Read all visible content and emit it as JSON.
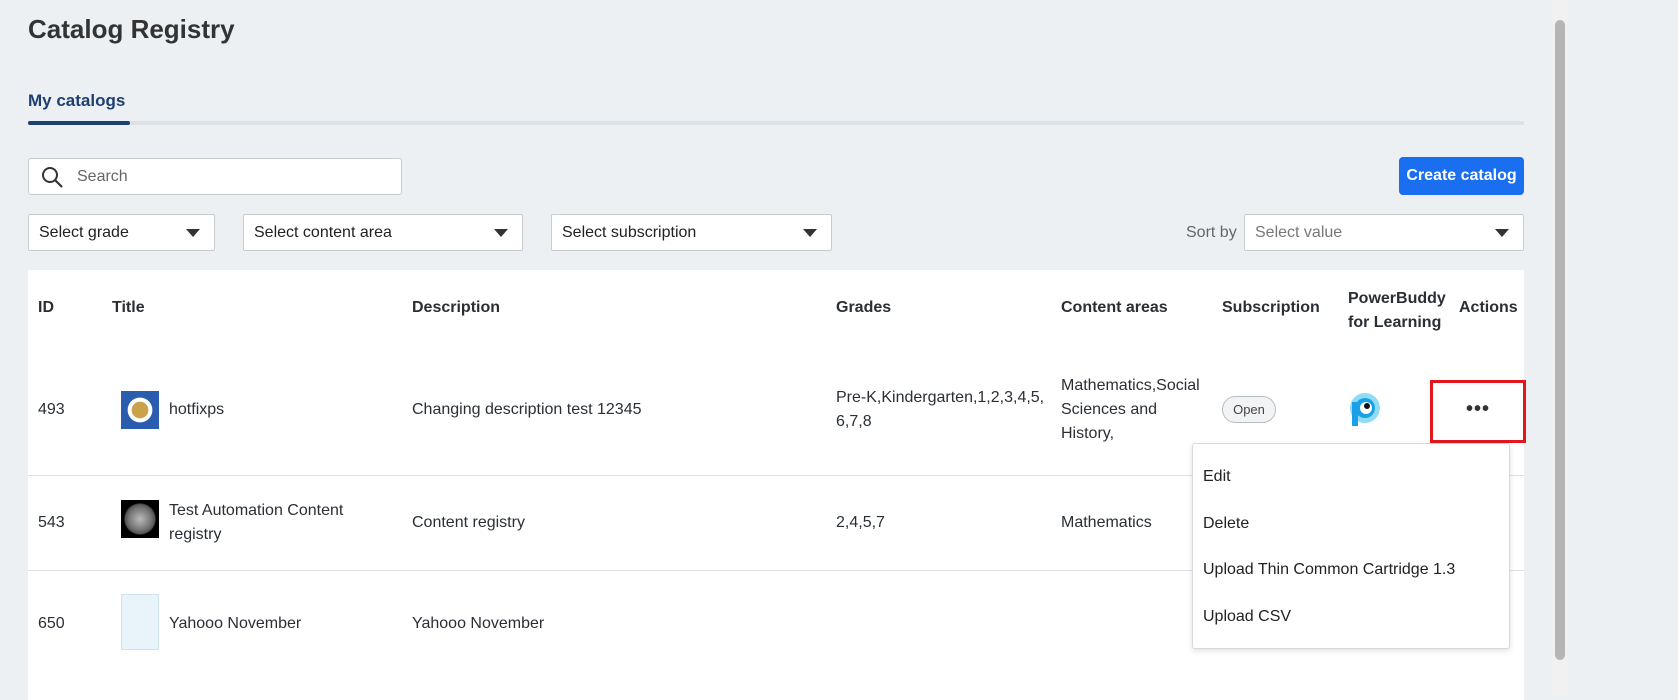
{
  "header": {
    "title": "Catalog Registry"
  },
  "tabs": [
    {
      "label": "My catalogs",
      "active": true
    }
  ],
  "search": {
    "placeholder": "Search",
    "value": ""
  },
  "create_label": "Create catalog",
  "filters": {
    "grade": "Select grade",
    "content_area": "Select content area",
    "subscription": "Select subscription"
  },
  "sort": {
    "label": "Sort by",
    "placeholder": "Select value"
  },
  "table": {
    "columns": [
      "ID",
      "Title",
      "Description",
      "Grades",
      "Content areas",
      "Subscription",
      "PowerBuddy for Learning",
      "Actions"
    ],
    "rows": [
      {
        "id": "493",
        "title": "hotfixps",
        "description": "Changing description test 12345",
        "grades": "Pre-K,Kindergarten,1,2,3,4,5,6,7,8",
        "content_areas": "Mathematics,Social Sciences and History,",
        "subscription": "Open",
        "powerbuddy": true
      },
      {
        "id": "543",
        "title": "Test Automation Content registry",
        "description": "Content registry",
        "grades": "2,4,5,7",
        "content_areas": "Mathematics"
      },
      {
        "id": "650",
        "title": "Yahooo November",
        "description": "Yahooo November",
        "grades": "",
        "content_areas": ""
      }
    ]
  },
  "actions_menu": [
    "Edit",
    "Delete",
    "Upload Thin Common Cartridge 1.3",
    "Upload CSV"
  ],
  "colors": {
    "primary": "#1a6ff0",
    "tab_active": "#1d3f72",
    "highlight": "#e3161c"
  }
}
